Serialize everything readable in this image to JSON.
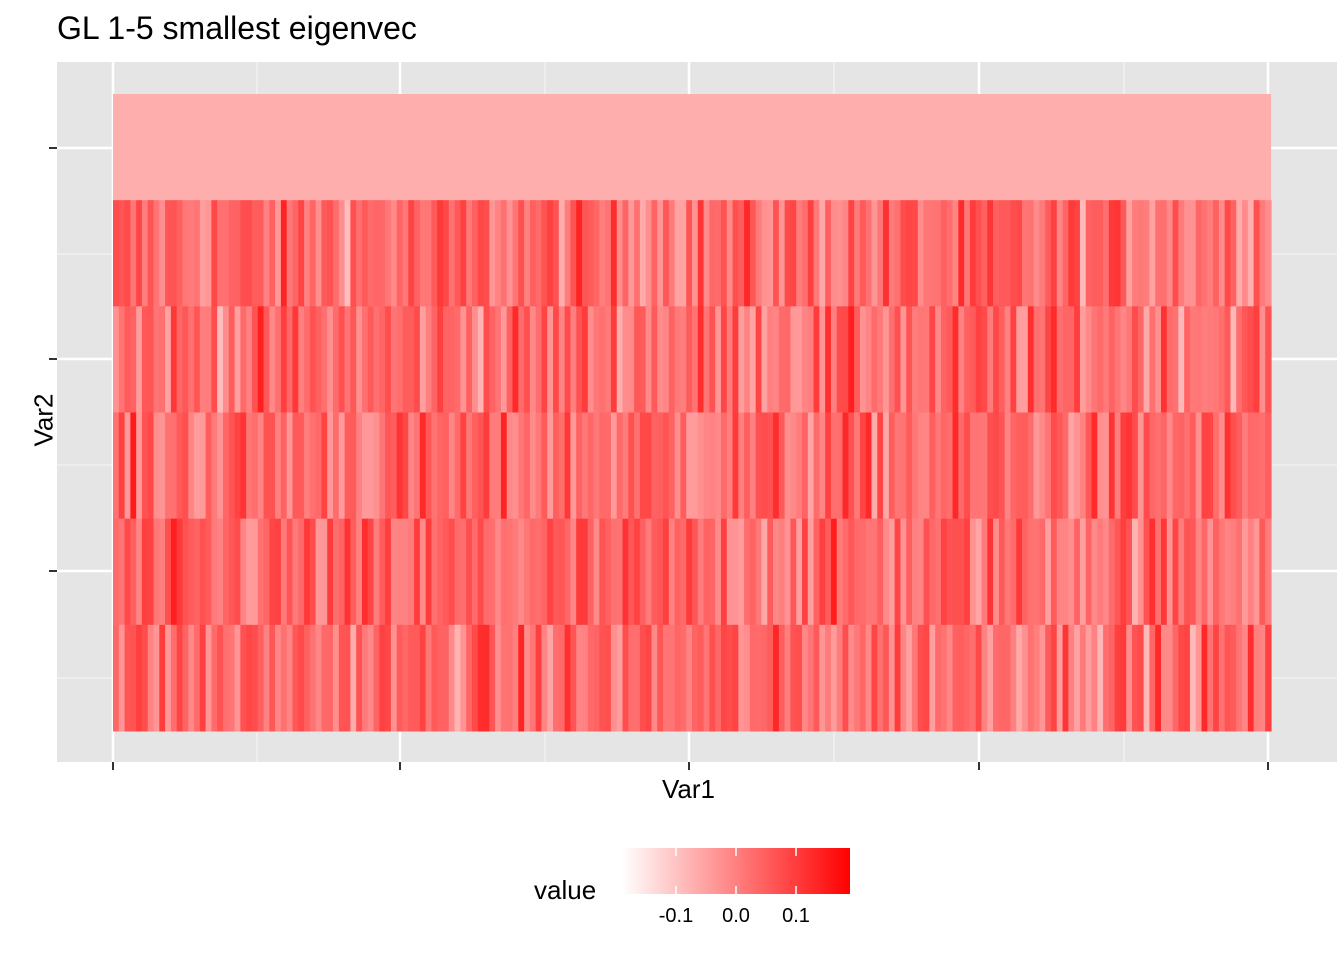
{
  "chart_data": {
    "type": "heatmap",
    "title": "GL 1-5 smallest eigenvec",
    "xlabel": "Var1",
    "ylabel": "Var2",
    "x_tick_labels": [
      "",
      "",
      "",
      "",
      ""
    ],
    "y_tick_labels": [
      "",
      "",
      ""
    ],
    "rows": 6,
    "columns": 200,
    "top_row_value": -0.07,
    "value_range": [
      -0.19,
      0.19
    ],
    "colorscale": {
      "low": "#ffffff",
      "high": "#ff0000"
    },
    "legend": {
      "title": "value",
      "placement": "bottom",
      "ticks": [
        -0.1,
        0.0,
        0.1
      ],
      "tick_labels": [
        "-0.1",
        "0.0",
        "0.1"
      ]
    },
    "panel_background": "#e5e5e5",
    "grid": true
  }
}
